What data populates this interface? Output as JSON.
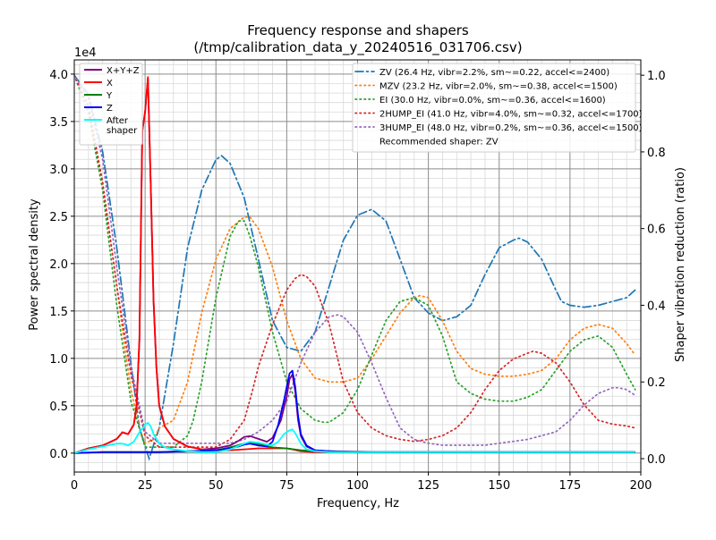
{
  "chart_data": {
    "type": "line",
    "title_line1": "Frequency response and shapers",
    "title_line2": "(/tmp/calibration_data_y_20240516_031706.csv)",
    "xlabel": "Frequency, Hz",
    "ylabel": "Power spectral density",
    "y2label": "Shaper vibration reduction (ratio)",
    "y_offset_label": "1e4",
    "xlim": [
      0,
      200
    ],
    "ylim": [
      -0.2,
      4.15
    ],
    "y2lim": [
      -0.035,
      1.04
    ],
    "x_ticks": [
      0,
      25,
      50,
      75,
      100,
      125,
      150,
      175,
      200
    ],
    "x_tick_labels": [
      "0",
      "25",
      "50",
      "75",
      "100",
      "125",
      "150",
      "175",
      "200"
    ],
    "y_ticks": [
      0,
      0.5,
      1.0,
      1.5,
      2.0,
      2.5,
      3.0,
      3.5,
      4.0
    ],
    "y_tick_labels": [
      "0.0",
      "0.5",
      "1.0",
      "1.5",
      "2.0",
      "2.5",
      "3.0",
      "3.5",
      "4.0"
    ],
    "y2_ticks": [
      0,
      0.2,
      0.4,
      0.6,
      0.8,
      1.0
    ],
    "y2_tick_labels": [
      "0.0",
      "0.2",
      "0.4",
      "0.6",
      "0.8",
      "1.0"
    ],
    "grid": true,
    "psd_legend_placement": "upper-left",
    "shaper_legend_placement": "upper-right",
    "psd_series": [
      {
        "name": "X+Y+Z",
        "color": "#800080",
        "x": [
          0,
          5,
          10,
          15,
          17,
          19,
          21,
          22,
          23,
          24,
          25,
          26,
          27,
          28,
          29,
          30,
          32,
          35,
          40,
          45,
          50,
          55,
          58,
          60,
          62,
          65,
          68,
          70,
          73,
          75,
          76,
          77,
          78,
          79,
          80,
          82,
          85,
          90,
          100,
          110,
          120,
          130,
          140,
          150,
          160,
          170,
          180,
          190,
          198
        ],
        "y": [
          0,
          0.05,
          0.08,
          0.15,
          0.22,
          0.2,
          0.3,
          0.5,
          1.2,
          3.4,
          3.6,
          3.95,
          2.8,
          1.6,
          0.9,
          0.5,
          0.28,
          0.15,
          0.07,
          0.04,
          0.05,
          0.08,
          0.13,
          0.17,
          0.18,
          0.15,
          0.12,
          0.16,
          0.35,
          0.6,
          0.78,
          0.83,
          0.65,
          0.35,
          0.18,
          0.07,
          0.03,
          0.02,
          0.015,
          0.01,
          0.01,
          0.01,
          0.01,
          0.01,
          0.01,
          0.01,
          0.01,
          0.01,
          0.01
        ]
      },
      {
        "name": "X",
        "color": "#ff0000",
        "x": [
          0,
          5,
          10,
          15,
          17,
          19,
          21,
          22,
          23,
          24,
          25,
          26,
          27,
          28,
          29,
          30,
          32,
          35,
          40,
          45,
          50,
          55,
          60,
          65,
          70,
          75,
          77,
          80,
          85,
          90,
          100,
          120,
          150,
          198
        ],
        "y": [
          0,
          0.05,
          0.08,
          0.15,
          0.22,
          0.2,
          0.3,
          0.5,
          1.2,
          3.4,
          3.6,
          3.97,
          2.8,
          1.6,
          0.9,
          0.5,
          0.28,
          0.15,
          0.07,
          0.04,
          0.03,
          0.03,
          0.04,
          0.05,
          0.05,
          0.05,
          0.04,
          0.02,
          0.01,
          0.01,
          0.01,
          0.01,
          0.01,
          0.01
        ]
      },
      {
        "name": "Y",
        "color": "#008000",
        "x": [
          0,
          10,
          20,
          30,
          40,
          50,
          55,
          60,
          62,
          65,
          68,
          70,
          75,
          80,
          90,
          100,
          120,
          150,
          198
        ],
        "y": [
          0,
          0.01,
          0.01,
          0.01,
          0.02,
          0.03,
          0.06,
          0.1,
          0.11,
          0.1,
          0.07,
          0.06,
          0.05,
          0.03,
          0.02,
          0.01,
          0.01,
          0.01,
          0.01
        ]
      },
      {
        "name": "Z",
        "color": "#0000ff",
        "x": [
          0,
          10,
          20,
          30,
          40,
          50,
          55,
          58,
          60,
          62,
          65,
          68,
          70,
          72,
          74,
          75,
          76,
          77,
          78,
          79,
          80,
          82,
          85,
          90,
          100,
          120,
          150,
          198
        ],
        "y": [
          0,
          0.01,
          0.01,
          0.01,
          0.02,
          0.03,
          0.05,
          0.07,
          0.09,
          0.1,
          0.08,
          0.07,
          0.12,
          0.3,
          0.55,
          0.7,
          0.84,
          0.87,
          0.7,
          0.4,
          0.2,
          0.08,
          0.03,
          0.02,
          0.01,
          0.01,
          0.01,
          0.01
        ]
      },
      {
        "name": "After\nshaper",
        "color": "#00ffff",
        "x": [
          0,
          5,
          10,
          15,
          17,
          19,
          21,
          23,
          25,
          26,
          27,
          28,
          29,
          30,
          32,
          35,
          40,
          45,
          50,
          55,
          60,
          62,
          65,
          68,
          70,
          72,
          74,
          76,
          77,
          78,
          80,
          82,
          85,
          90,
          100,
          120,
          150,
          198
        ],
        "y": [
          0,
          0.04,
          0.07,
          0.1,
          0.1,
          0.08,
          0.12,
          0.22,
          0.3,
          0.32,
          0.28,
          0.2,
          0.15,
          0.1,
          0.06,
          0.04,
          0.02,
          0.01,
          0.01,
          0.04,
          0.1,
          0.12,
          0.11,
          0.09,
          0.08,
          0.12,
          0.2,
          0.24,
          0.25,
          0.21,
          0.1,
          0.04,
          0.02,
          0.01,
          0.01,
          0.01,
          0.01,
          0.01
        ]
      }
    ],
    "shaper_series": [
      {
        "name": "ZV (26.4 Hz, vibr=2.2%, sm~=0.22, accel<=2400)",
        "color": "#1f77b4",
        "style": "dashdot",
        "x": [
          0,
          5,
          10,
          15,
          20,
          23,
          26.4,
          30,
          35,
          40,
          45,
          50,
          52,
          55,
          60,
          65,
          70,
          75,
          80,
          85,
          90,
          95,
          100,
          105,
          110,
          115,
          120,
          125,
          130,
          135,
          140,
          145,
          150,
          155,
          157,
          160,
          165,
          170,
          172,
          175,
          180,
          185,
          190,
          195,
          198
        ],
        "y": [
          1.0,
          0.95,
          0.8,
          0.55,
          0.25,
          0.08,
          0.0,
          0.08,
          0.3,
          0.55,
          0.7,
          0.78,
          0.79,
          0.77,
          0.68,
          0.52,
          0.36,
          0.29,
          0.28,
          0.33,
          0.45,
          0.57,
          0.635,
          0.65,
          0.62,
          0.52,
          0.42,
          0.38,
          0.36,
          0.37,
          0.4,
          0.48,
          0.55,
          0.57,
          0.575,
          0.565,
          0.52,
          0.44,
          0.41,
          0.4,
          0.395,
          0.4,
          0.41,
          0.42,
          0.44
        ]
      },
      {
        "name": "MZV (23.2 Hz, vibr=2.0%, sm~=0.38, accel<=1500)",
        "color": "#ff7f0e",
        "style": "dotted",
        "x": [
          0,
          5,
          10,
          15,
          18,
          20,
          23,
          25,
          28,
          30,
          35,
          40,
          45,
          50,
          55,
          60,
          62,
          65,
          70,
          75,
          80,
          85,
          90,
          95,
          100,
          105,
          110,
          115,
          120,
          122,
          125,
          130,
          135,
          140,
          145,
          150,
          155,
          160,
          165,
          170,
          175,
          180,
          185,
          190,
          195,
          198
        ],
        "y": [
          1.0,
          0.92,
          0.72,
          0.45,
          0.28,
          0.18,
          0.08,
          0.04,
          0.05,
          0.08,
          0.1,
          0.2,
          0.38,
          0.52,
          0.6,
          0.63,
          0.63,
          0.6,
          0.5,
          0.36,
          0.26,
          0.21,
          0.2,
          0.2,
          0.21,
          0.26,
          0.32,
          0.38,
          0.42,
          0.425,
          0.42,
          0.36,
          0.28,
          0.235,
          0.22,
          0.215,
          0.215,
          0.22,
          0.23,
          0.26,
          0.31,
          0.34,
          0.35,
          0.34,
          0.3,
          0.27
        ]
      },
      {
        "name": "EI (30.0 Hz, vibr=0.0%, sm~=0.36, accel<=1600)",
        "color": "#2ca02c",
        "style": "dotted",
        "x": [
          0,
          5,
          10,
          15,
          20,
          25,
          30,
          35,
          40,
          42,
          45,
          50,
          55,
          58,
          60,
          62,
          65,
          70,
          75,
          80,
          85,
          88,
          90,
          95,
          100,
          105,
          110,
          115,
          120,
          125,
          130,
          135,
          140,
          145,
          150,
          155,
          160,
          165,
          170,
          175,
          180,
          185,
          190,
          195,
          198
        ],
        "y": [
          1.0,
          0.9,
          0.7,
          0.4,
          0.15,
          0.03,
          0.03,
          0.03,
          0.06,
          0.1,
          0.2,
          0.42,
          0.58,
          0.62,
          0.62,
          0.58,
          0.5,
          0.33,
          0.2,
          0.13,
          0.1,
          0.095,
          0.095,
          0.12,
          0.18,
          0.27,
          0.36,
          0.41,
          0.42,
          0.4,
          0.32,
          0.2,
          0.17,
          0.155,
          0.15,
          0.15,
          0.16,
          0.18,
          0.23,
          0.28,
          0.31,
          0.32,
          0.29,
          0.22,
          0.18
        ]
      },
      {
        "name": "2HUMP_EI (41.0 Hz, vibr=4.0%, sm~=0.32, accel<=1700)",
        "color": "#d62728",
        "style": "dotted",
        "x": [
          0,
          5,
          10,
          15,
          20,
          25,
          30,
          35,
          40,
          45,
          50,
          55,
          60,
          63,
          65,
          70,
          75,
          78,
          80,
          82,
          85,
          90,
          95,
          100,
          105,
          110,
          115,
          120,
          125,
          130,
          135,
          140,
          145,
          150,
          155,
          160,
          162,
          165,
          170,
          175,
          180,
          185,
          190,
          195,
          198
        ],
        "y": [
          1.0,
          0.92,
          0.72,
          0.45,
          0.22,
          0.06,
          0.03,
          0.03,
          0.03,
          0.03,
          0.03,
          0.05,
          0.1,
          0.18,
          0.24,
          0.35,
          0.44,
          0.47,
          0.48,
          0.475,
          0.45,
          0.35,
          0.2,
          0.12,
          0.08,
          0.06,
          0.05,
          0.045,
          0.05,
          0.06,
          0.08,
          0.12,
          0.18,
          0.23,
          0.26,
          0.275,
          0.28,
          0.275,
          0.25,
          0.2,
          0.14,
          0.1,
          0.09,
          0.085,
          0.08
        ]
      },
      {
        "name": "3HUMP_EI (48.0 Hz, vibr=0.2%, sm~=0.36, accel<=1500)",
        "color": "#9467bd",
        "style": "dotted",
        "x": [
          0,
          5,
          10,
          15,
          20,
          25,
          30,
          35,
          40,
          45,
          50,
          55,
          60,
          65,
          70,
          75,
          80,
          85,
          90,
          93,
          95,
          100,
          105,
          110,
          115,
          120,
          125,
          130,
          135,
          140,
          145,
          150,
          155,
          160,
          165,
          170,
          175,
          180,
          185,
          190,
          192,
          195,
          198
        ],
        "y": [
          1.0,
          0.94,
          0.78,
          0.5,
          0.24,
          0.07,
          0.04,
          0.04,
          0.04,
          0.04,
          0.04,
          0.04,
          0.05,
          0.07,
          0.1,
          0.15,
          0.25,
          0.33,
          0.37,
          0.375,
          0.37,
          0.33,
          0.25,
          0.16,
          0.08,
          0.05,
          0.04,
          0.035,
          0.035,
          0.035,
          0.035,
          0.04,
          0.045,
          0.05,
          0.06,
          0.07,
          0.1,
          0.14,
          0.17,
          0.185,
          0.185,
          0.18,
          0.165
        ]
      }
    ],
    "shaper_legend_note": "Recommended shaper: ZV"
  }
}
